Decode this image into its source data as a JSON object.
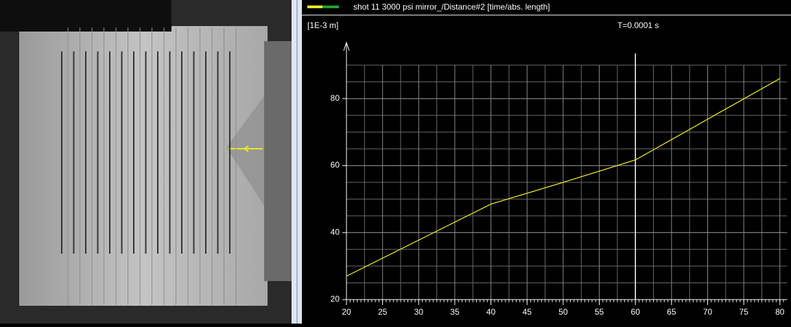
{
  "header": {
    "legend": "shot 11 3000 psi mirror_/Distance#2 [time/abs. length]",
    "unit": "[1E-3 m]",
    "cursor_label": "T=0.0001 s"
  },
  "chart_data": {
    "type": "line",
    "x": [
      20,
      40,
      50,
      60,
      80
    ],
    "series": [
      {
        "name": "shot 11 3000 psi mirror_/Distance#2 [time/abs. length]",
        "color": "#e6e62a",
        "values": [
          27,
          48.5,
          55,
          61.7,
          86
        ]
      }
    ],
    "xlim": [
      20,
      81
    ],
    "ylim": [
      20,
      90
    ],
    "xticks": [
      20,
      25,
      30,
      35,
      40,
      45,
      50,
      55,
      60,
      65,
      70,
      75,
      80
    ],
    "yticks": [
      20,
      40,
      60,
      80
    ],
    "grid": true
  }
}
